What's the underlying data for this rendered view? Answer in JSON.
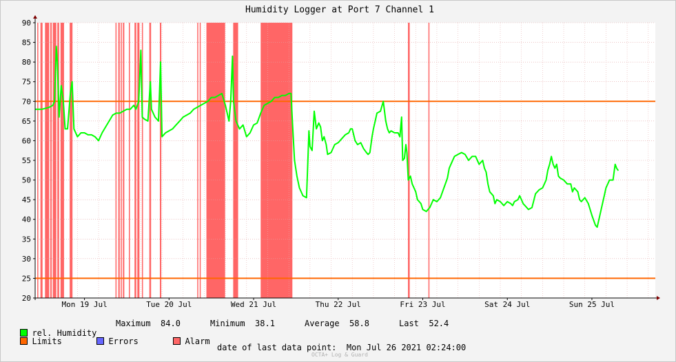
{
  "chart_data": {
    "type": "line",
    "title": "Humidity Logger at Port 7 Channel 1",
    "ylim": [
      20,
      90
    ],
    "yticks": [
      20,
      25,
      30,
      35,
      40,
      45,
      50,
      55,
      60,
      65,
      70,
      75,
      80,
      85,
      90
    ],
    "xlim_hours": [
      0,
      176
    ],
    "xticks": [
      {
        "label": "Mon 19 Jul",
        "t": 14
      },
      {
        "label": "Tue 20 Jul",
        "t": 38
      },
      {
        "label": "Wed 21 Jul",
        "t": 62
      },
      {
        "label": "Thu 22 Jul",
        "t": 86
      },
      {
        "label": "Fri 23 Jul",
        "t": 110
      },
      {
        "label": "Sat 24 Jul",
        "t": 134
      },
      {
        "label": "Sun 25 Jul",
        "t": 158
      }
    ],
    "limits": [
      70,
      25
    ],
    "alarm_periods": [
      [
        0.6,
        0.9
      ],
      [
        1.5,
        2.1
      ],
      [
        2.8,
        4.0
      ],
      [
        4.3,
        4.7
      ],
      [
        5.0,
        6.0
      ],
      [
        6.3,
        6.8
      ],
      [
        7.2,
        8.2
      ],
      [
        9.8,
        10.6
      ],
      [
        22.8,
        23.1
      ],
      [
        23.6,
        24.0
      ],
      [
        24.3,
        24.6
      ],
      [
        24.9,
        25.3
      ],
      [
        26.6,
        26.9
      ],
      [
        28.2,
        28.7
      ],
      [
        29.0,
        29.6
      ],
      [
        30.3,
        30.6
      ],
      [
        32.4,
        32.9
      ],
      [
        35.4,
        35.8
      ],
      [
        46.0,
        46.2
      ],
      [
        46.7,
        46.9
      ],
      [
        48.6,
        53.9
      ],
      [
        56.2,
        57.6
      ],
      [
        64.0,
        73.0
      ],
      [
        105.8,
        106.3
      ],
      [
        111.6,
        111.9
      ]
    ],
    "series": [
      {
        "name": "rel. Humidity",
        "color": "#00ff00",
        "points": [
          [
            0,
            68
          ],
          [
            2,
            68
          ],
          [
            4,
            68.5
          ],
          [
            5,
            69
          ],
          [
            5.5,
            70
          ],
          [
            6,
            84
          ],
          [
            6.3,
            80
          ],
          [
            6.8,
            66
          ],
          [
            7.4,
            74
          ],
          [
            8,
            70
          ],
          [
            8.5,
            63
          ],
          [
            9.2,
            63
          ],
          [
            10,
            72
          ],
          [
            10.5,
            75
          ],
          [
            11,
            63
          ],
          [
            12,
            61
          ],
          [
            13,
            62
          ],
          [
            14,
            62
          ],
          [
            15,
            61.5
          ],
          [
            16,
            61.5
          ],
          [
            17,
            61
          ],
          [
            18,
            60
          ],
          [
            19,
            62
          ],
          [
            20,
            63.5
          ],
          [
            21,
            65
          ],
          [
            22,
            66.5
          ],
          [
            23,
            67
          ],
          [
            24,
            67
          ],
          [
            25,
            67.5
          ],
          [
            26,
            68
          ],
          [
            27,
            68
          ],
          [
            28,
            69
          ],
          [
            28.6,
            68
          ],
          [
            29.4,
            70
          ],
          [
            30,
            83
          ],
          [
            30.4,
            66
          ],
          [
            31,
            65.5
          ],
          [
            32,
            65
          ],
          [
            32.7,
            75
          ],
          [
            33,
            68
          ],
          [
            34,
            66
          ],
          [
            35,
            65
          ],
          [
            35.6,
            80
          ],
          [
            36,
            61
          ],
          [
            37,
            62
          ],
          [
            38,
            62.5
          ],
          [
            39,
            63
          ],
          [
            40,
            64
          ],
          [
            41,
            65
          ],
          [
            42,
            66
          ],
          [
            43,
            66.5
          ],
          [
            44,
            67
          ],
          [
            45,
            68
          ],
          [
            46,
            68.5
          ],
          [
            47,
            69
          ],
          [
            48,
            69.5
          ],
          [
            49,
            70
          ],
          [
            50,
            71
          ],
          [
            51,
            71
          ],
          [
            52,
            71.5
          ],
          [
            53,
            72
          ],
          [
            54,
            69
          ],
          [
            55,
            65
          ],
          [
            55.5,
            70
          ],
          [
            56,
            81.5
          ],
          [
            56.3,
            70
          ],
          [
            57,
            65
          ],
          [
            58,
            63
          ],
          [
            59,
            64
          ],
          [
            60,
            61
          ],
          [
            61,
            62
          ],
          [
            62,
            64
          ],
          [
            63,
            64.5
          ],
          [
            64,
            67
          ],
          [
            65,
            69
          ],
          [
            66,
            69.5
          ],
          [
            67,
            70
          ],
          [
            68,
            71
          ],
          [
            69,
            71
          ],
          [
            70,
            71.5
          ],
          [
            71,
            71.5
          ],
          [
            72,
            72
          ],
          [
            72.6,
            72
          ],
          [
            73,
            65
          ],
          [
            73.6,
            55
          ],
          [
            74.3,
            51
          ],
          [
            75,
            48
          ],
          [
            76,
            46
          ],
          [
            77,
            45.5
          ],
          [
            77.4,
            55
          ],
          [
            77.7,
            62.5
          ],
          [
            78,
            58.5
          ],
          [
            78.6,
            57.5
          ],
          [
            79.2,
            67.5
          ],
          [
            79.8,
            63
          ],
          [
            80.5,
            64.5
          ],
          [
            81,
            63.5
          ],
          [
            81.5,
            60
          ],
          [
            82,
            61
          ],
          [
            82.6,
            59
          ],
          [
            83,
            56.5
          ],
          [
            84,
            57
          ],
          [
            85,
            59
          ],
          [
            86,
            59.5
          ],
          [
            87,
            60.5
          ],
          [
            88,
            61.5
          ],
          [
            89,
            62
          ],
          [
            89.5,
            63
          ],
          [
            90,
            63
          ],
          [
            90.8,
            60
          ],
          [
            91.5,
            59
          ],
          [
            92.4,
            59.5
          ],
          [
            93.2,
            58
          ],
          [
            94,
            57
          ],
          [
            94.5,
            56.5
          ],
          [
            95,
            57
          ],
          [
            95.6,
            61
          ],
          [
            96,
            63
          ],
          [
            96.5,
            65
          ],
          [
            97,
            67
          ],
          [
            98,
            67.5
          ],
          [
            98.8,
            70
          ],
          [
            99.5,
            65
          ],
          [
            100,
            63
          ],
          [
            100.5,
            62
          ],
          [
            101,
            62.5
          ],
          [
            102,
            62
          ],
          [
            103,
            62
          ],
          [
            103.5,
            61
          ],
          [
            104,
            66
          ],
          [
            104.3,
            55
          ],
          [
            104.8,
            55.5
          ],
          [
            105.2,
            59
          ],
          [
            105.5,
            57
          ],
          [
            105.9,
            50
          ],
          [
            106.5,
            51
          ],
          [
            107,
            49
          ],
          [
            108,
            47
          ],
          [
            108.5,
            45
          ],
          [
            109,
            44.5
          ],
          [
            109.5,
            44
          ],
          [
            110,
            42.5
          ],
          [
            111,
            42
          ],
          [
            112,
            43
          ],
          [
            113,
            45
          ],
          [
            114,
            44.5
          ],
          [
            115,
            45.5
          ],
          [
            116,
            48
          ],
          [
            116.8,
            50
          ],
          [
            117,
            50.5
          ],
          [
            117.5,
            53
          ],
          [
            118,
            54
          ],
          [
            119,
            56
          ],
          [
            120,
            56.5
          ],
          [
            121,
            57
          ],
          [
            122,
            56.5
          ],
          [
            123,
            55
          ],
          [
            124,
            56
          ],
          [
            125,
            56
          ],
          [
            126,
            54
          ],
          [
            127,
            55
          ],
          [
            127.5,
            53
          ],
          [
            128,
            52
          ],
          [
            128.5,
            49
          ],
          [
            129,
            47
          ],
          [
            130,
            46
          ],
          [
            130.5,
            44
          ],
          [
            131,
            45
          ],
          [
            132,
            44.5
          ],
          [
            133,
            43.5
          ],
          [
            134,
            44.5
          ],
          [
            135,
            44
          ],
          [
            135.5,
            43.5
          ],
          [
            136,
            44.5
          ],
          [
            137,
            45
          ],
          [
            137.5,
            46
          ],
          [
            138,
            45
          ],
          [
            138.5,
            44
          ],
          [
            139,
            43.5
          ],
          [
            140,
            42.5
          ],
          [
            141,
            43
          ],
          [
            142,
            46.5
          ],
          [
            143,
            47.5
          ],
          [
            144,
            48
          ],
          [
            145,
            50
          ],
          [
            145.5,
            52.5
          ],
          [
            146,
            54
          ],
          [
            146.5,
            56
          ],
          [
            147,
            54
          ],
          [
            147.5,
            53
          ],
          [
            148,
            54
          ],
          [
            148.5,
            51
          ],
          [
            149,
            50.5
          ],
          [
            150,
            50
          ],
          [
            151,
            49
          ],
          [
            152,
            49
          ],
          [
            152.5,
            47
          ],
          [
            153,
            48
          ],
          [
            154,
            47
          ],
          [
            154.5,
            45
          ],
          [
            155,
            44.5
          ],
          [
            156,
            45.5
          ],
          [
            157,
            44
          ],
          [
            158,
            41
          ],
          [
            159,
            38.5
          ],
          [
            159.5,
            38
          ],
          [
            160,
            40
          ],
          [
            161,
            44
          ],
          [
            161.5,
            46
          ],
          [
            162,
            48
          ],
          [
            163,
            50
          ],
          [
            164,
            50
          ],
          [
            164.6,
            54
          ],
          [
            165,
            53
          ],
          [
            165.5,
            52.4
          ]
        ]
      }
    ]
  },
  "legend": {
    "humidity": "rel. Humidity",
    "maximum_label": "Maximum",
    "maximum_value": "84.0",
    "minimum_label": "Minimum",
    "minimum_value": "38.1",
    "average_label": "Average",
    "average_value": "58.8",
    "last_label": "Last",
    "last_value": "52.4",
    "limits": "Limits",
    "errors": "Errors",
    "alarm": "Alarm",
    "colors": {
      "humidity": "#00ff00",
      "limits": "#ff6600",
      "errors": "#6666ff",
      "alarm": "#ff6666"
    }
  },
  "footer": {
    "last_point_label": "date of last data point:",
    "last_point_value": "Mon Jul 26 2021 02:24:00",
    "brand": "OCTA+ Log & Guard"
  }
}
